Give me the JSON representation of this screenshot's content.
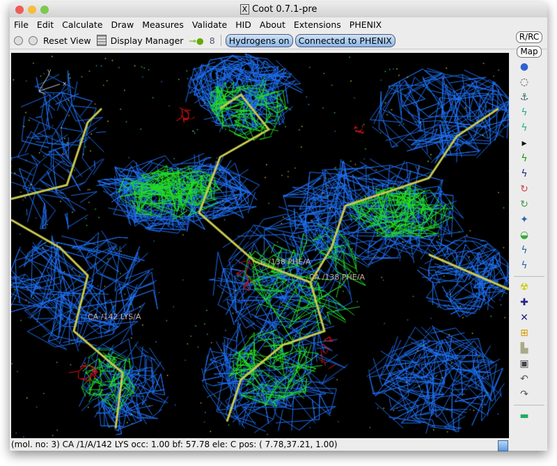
{
  "window": {
    "title": "Coot 0.7.1-pre",
    "x_icon": "X"
  },
  "menu": [
    "File",
    "Edit",
    "Calculate",
    "Draw",
    "Measures",
    "Validate",
    "HID",
    "About",
    "Extensions",
    "PHENIX"
  ],
  "toolbar": {
    "reset_view": "Reset View",
    "display_manager": "Display Manager",
    "hydrogens": "Hydrogens on",
    "phenix": "Connected to PHENIX"
  },
  "viewport": {
    "labels": [
      "C /138 PHE/A",
      "CA /138 PHE/A",
      "CA /142 LYS/A"
    ],
    "axes": [
      "x",
      "y"
    ],
    "colors": {
      "map": "#1e6ff0",
      "diff_pos": "#22dd22",
      "diff_neg": "#dd1111",
      "bonds": "#c8c850"
    }
  },
  "right_toolbar": {
    "rrc": "R/RC",
    "map": "Map",
    "icons": [
      "sphere-refine-icon",
      "rotate-translate-icon",
      "anchor-icon",
      "rigid-body-icon",
      "regularize-icon",
      "more-arrow-icon",
      "auto-fit-rotamer-icon",
      "rotamer-icon",
      "flip-peptide-icon",
      "torsion-icon",
      "edit-chi-icon",
      "side-chain-180-icon",
      "mutate-icon",
      "add-alt-conf-icon",
      "radiation-icon",
      "add-atom-icon",
      "place-water-icon",
      "add-terminal-icon",
      "clear-icon",
      "delete-icon",
      "undo-icon",
      "redo-icon",
      "flag-icon"
    ]
  },
  "status": "(mol. no: 3)  CA /1/A/142 LYS occ:  1.00 bf: 57.78 ele:  C pos: ( 7.78,37.21, 1.00)"
}
